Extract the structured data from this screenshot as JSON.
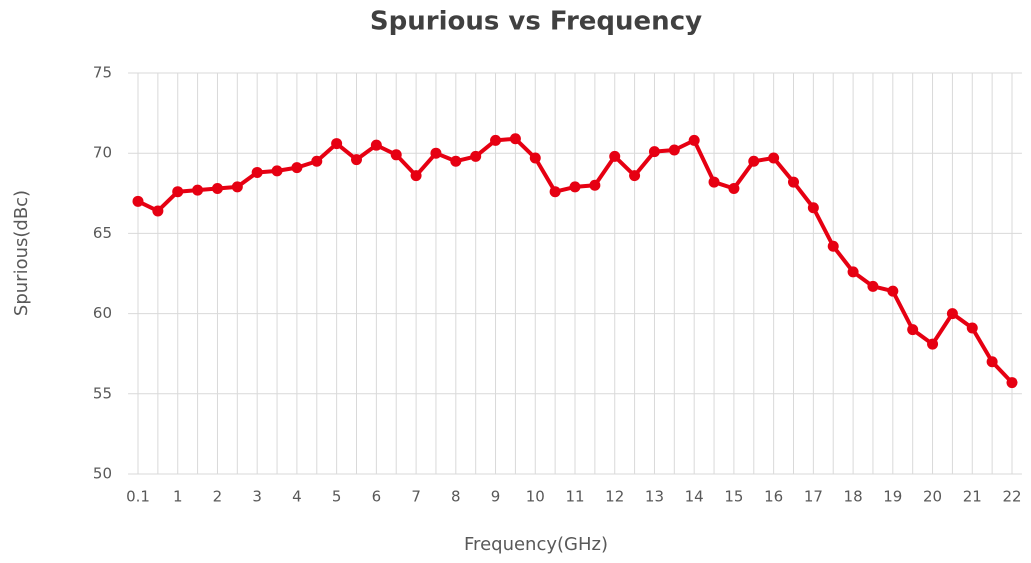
{
  "chart_data": {
    "type": "line",
    "title": "Spurious vs Frequency",
    "x_label": "Frequency(GHz)",
    "y_label": "Spurious(dBc)",
    "categories": [
      "0.1",
      null,
      "1",
      null,
      "2",
      null,
      "3",
      null,
      "4",
      null,
      "5",
      null,
      "6",
      null,
      "7",
      null,
      "8",
      null,
      "9",
      null,
      "10",
      null,
      "11",
      null,
      "12",
      null,
      "13",
      null,
      "14",
      null,
      "15",
      null,
      "16",
      null,
      "17",
      null,
      "18",
      null,
      "19",
      null,
      "20",
      null,
      "21",
      null,
      "22"
    ],
    "series": [
      {
        "color": "#e60012",
        "values": [
          67.0,
          66.4,
          67.6,
          67.7,
          67.8,
          67.9,
          68.8,
          68.9,
          69.1,
          69.5,
          70.6,
          69.6,
          70.5,
          69.9,
          68.6,
          70.0,
          69.5,
          69.8,
          70.8,
          70.9,
          69.7,
          67.6,
          67.9,
          68.0,
          69.8,
          68.6,
          70.1,
          70.2,
          70.8,
          68.2,
          67.8,
          69.5,
          69.7,
          68.2,
          66.6,
          64.2,
          62.6,
          61.7,
          61.4,
          59.0,
          58.1,
          60.0,
          59.1,
          57.0,
          55.7
        ]
      }
    ],
    "ylim": [
      50,
      75
    ],
    "yticks": [
      50,
      55,
      60,
      65,
      70,
      75
    ],
    "grid": true
  }
}
